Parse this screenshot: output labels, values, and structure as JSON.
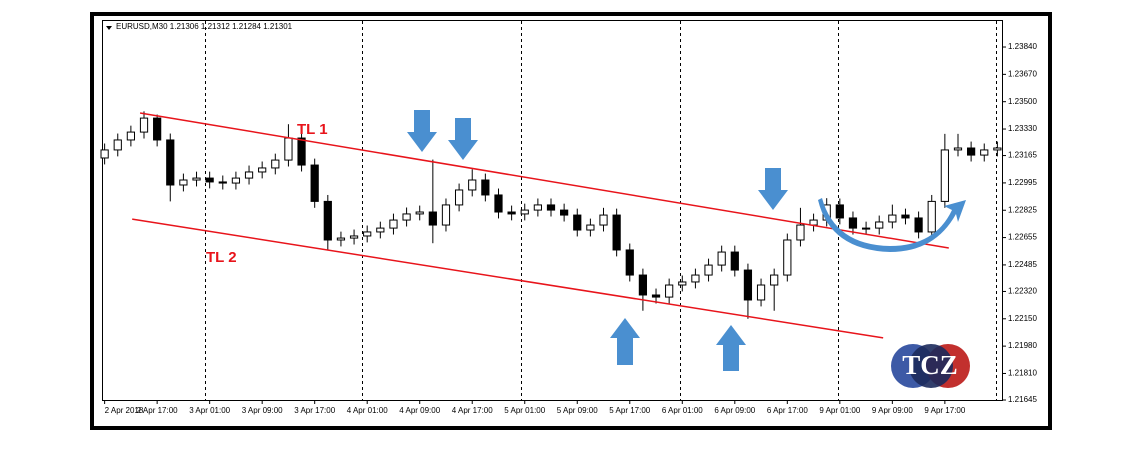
{
  "chart_data": {
    "type": "candlestick",
    "header": "EURUSD,M30  1.21306 1.21312 1.21284 1.21301",
    "open": [
      1.2315,
      1.232,
      1.23262,
      1.23311,
      1.23398,
      1.23262,
      1.22982,
      1.23013,
      1.23025,
      1.23001,
      1.22994,
      1.23025,
      1.23063,
      1.23088,
      1.23137,
      1.23274,
      1.23106,
      1.2288,
      1.2264,
      1.22652,
      1.22665,
      1.2269,
      1.22714,
      1.22764,
      1.22802,
      1.22814,
      1.22733,
      1.22858,
      1.22951,
      1.23013,
      1.2292,
      1.22814,
      1.22802,
      1.22826,
      1.22858,
      1.22826,
      1.22795,
      1.22702,
      1.22733,
      1.22795,
      1.22578,
      1.22422,
      1.22298,
      1.22285,
      1.2236,
      1.22379,
      1.22422,
      1.22484,
      1.22565,
      1.22453,
      1.22267,
      1.2236,
      1.22422,
      1.2264,
      1.22733,
      1.22764,
      1.22858,
      1.22777,
      1.22714,
      1.22714,
      1.22752,
      1.22795,
      1.22777,
      1.2269,
      1.2288,
      1.232,
      1.23212,
      1.23168,
      1.232
    ],
    "high": [
      1.2324,
      1.23302,
      1.23351,
      1.2344,
      1.2342,
      1.23302,
      1.23053,
      1.23065,
      1.23065,
      1.23041,
      1.23065,
      1.23103,
      1.23128,
      1.23177,
      1.2336,
      1.23314,
      1.23146,
      1.2292,
      1.22692,
      1.22705,
      1.2273,
      1.22754,
      1.22804,
      1.22842,
      1.22854,
      1.2314,
      1.22898,
      1.22991,
      1.2308,
      1.23053,
      1.2296,
      1.22854,
      1.22866,
      1.22898,
      1.22898,
      1.22866,
      1.22835,
      1.22773,
      1.2284,
      1.22835,
      1.22618,
      1.22462,
      1.22338,
      1.224,
      1.22419,
      1.22462,
      1.22524,
      1.22605,
      1.22605,
      1.22493,
      1.224,
      1.22462,
      1.2268,
      1.2284,
      1.22804,
      1.229,
      1.22898,
      1.22817,
      1.22754,
      1.22792,
      1.2286,
      1.22835,
      1.22817,
      1.2292,
      1.233,
      1.233,
      1.23252,
      1.2324,
      1.23252
    ],
    "low": [
      1.2311,
      1.2316,
      1.23222,
      1.23271,
      1.23222,
      1.2288,
      1.22942,
      1.22973,
      1.22961,
      1.22954,
      1.22954,
      1.22985,
      1.23023,
      1.23048,
      1.23097,
      1.23066,
      1.2284,
      1.2258,
      1.226,
      1.22612,
      1.22625,
      1.2265,
      1.22674,
      1.22724,
      1.22762,
      1.2262,
      1.22693,
      1.22818,
      1.22911,
      1.2288,
      1.22774,
      1.22762,
      1.22762,
      1.22786,
      1.22786,
      1.22755,
      1.22662,
      1.22662,
      1.22693,
      1.22538,
      1.22382,
      1.222,
      1.22245,
      1.22245,
      1.2232,
      1.22339,
      1.22382,
      1.22444,
      1.22413,
      1.2215,
      1.22227,
      1.222,
      1.22382,
      1.226,
      1.22693,
      1.22724,
      1.22737,
      1.22674,
      1.22674,
      1.22674,
      1.22712,
      1.22737,
      1.2265,
      1.2265,
      1.2284,
      1.2316,
      1.23128,
      1.23128,
      1.2316
    ],
    "close": [
      1.232,
      1.23262,
      1.23311,
      1.23398,
      1.23262,
      1.22982,
      1.23013,
      1.23025,
      1.23001,
      1.22994,
      1.23025,
      1.23063,
      1.23088,
      1.23137,
      1.23274,
      1.23106,
      1.2288,
      1.2264,
      1.22652,
      1.22665,
      1.2269,
      1.22714,
      1.22764,
      1.22802,
      1.22814,
      1.22733,
      1.22858,
      1.22951,
      1.23013,
      1.2292,
      1.22814,
      1.22802,
      1.22826,
      1.22858,
      1.22826,
      1.22795,
      1.22702,
      1.22733,
      1.22795,
      1.22578,
      1.22422,
      1.22298,
      1.22285,
      1.2236,
      1.22379,
      1.22422,
      1.22484,
      1.22565,
      1.22453,
      1.22267,
      1.2236,
      1.22422,
      1.2264,
      1.22733,
      1.22764,
      1.22858,
      1.22777,
      1.22714,
      1.22714,
      1.22752,
      1.22795,
      1.22777,
      1.2269,
      1.2288,
      1.232,
      1.23212,
      1.23168,
      1.232,
      1.23212
    ],
    "xlim": [
      -0.2,
      68.2
    ],
    "xticks": [
      {
        "value": 0,
        "label": "2 Apr 2018"
      },
      {
        "value": 4,
        "label": "2 Apr 17:00"
      },
      {
        "value": 8,
        "label": "3 Apr 01:00"
      },
      {
        "value": 12,
        "label": "3 Apr 09:00"
      },
      {
        "value": 16,
        "label": "3 Apr 17:00"
      },
      {
        "value": 20,
        "label": "4 Apr 01:00"
      },
      {
        "value": 24,
        "label": "4 Apr 09:00"
      },
      {
        "value": 28,
        "label": "4 Apr 17:00"
      },
      {
        "value": 32,
        "label": "5 Apr 01:00"
      },
      {
        "value": 36,
        "label": "5 Apr 09:00"
      },
      {
        "value": 40,
        "label": "5 Apr 17:00"
      },
      {
        "value": 44,
        "label": "6 Apr 01:00"
      },
      {
        "value": 48,
        "label": "6 Apr 09:00"
      },
      {
        "value": 52,
        "label": "6 Apr 17:00"
      },
      {
        "value": 56,
        "label": "9 Apr 01:00"
      },
      {
        "value": 60,
        "label": "9 Apr 09:00"
      },
      {
        "value": 64,
        "label": "9 Apr 17:00"
      }
    ],
    "ylim": [
      1.21645,
      1.24008
    ],
    "yticks": [
      {
        "value": 1.2384,
        "label": "1.23840"
      },
      {
        "value": 1.2367,
        "label": "1.23670"
      },
      {
        "value": 1.235,
        "label": "1.23500"
      },
      {
        "value": 1.2333,
        "label": "1.23330"
      },
      {
        "value": 1.23165,
        "label": "1.23165"
      },
      {
        "value": 1.22995,
        "label": "1.22995"
      },
      {
        "value": 1.22825,
        "label": "1.22825"
      },
      {
        "value": 1.22655,
        "label": "1.22655"
      },
      {
        "value": 1.22485,
        "label": "1.22485"
      },
      {
        "value": 1.2232,
        "label": "1.22320"
      },
      {
        "value": 1.2215,
        "label": "1.22150"
      },
      {
        "value": 1.2198,
        "label": "1.21980"
      },
      {
        "value": 1.2181,
        "label": "1.21810"
      },
      {
        "value": 1.21645,
        "label": "1.21645"
      }
    ],
    "trendlines": [
      {
        "name": "TL 1",
        "x": [
          2.7,
          64.3
        ],
        "y": [
          1.2343,
          1.2259
        ]
      },
      {
        "name": "TL 2",
        "x": [
          2.1,
          59.3
        ],
        "y": [
          1.2277,
          1.22031
        ]
      }
    ],
    "trendline_color": "#e8141b",
    "up_color": "#ffffff",
    "down_color": "#000000",
    "logo": "TCZ"
  }
}
